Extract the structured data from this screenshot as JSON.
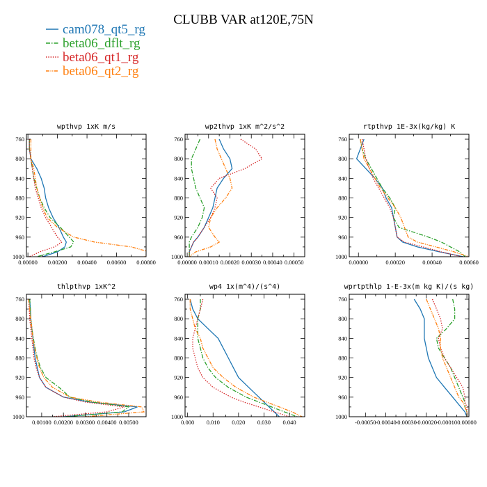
{
  "title": "CLUBB VAR at120E,75N",
  "legend": [
    {
      "name": "cam078_qt5_rg",
      "color": "#1f77b4",
      "dash": "solid"
    },
    {
      "name": "beta06_dflt_rg",
      "color": "#2ca02c",
      "dash": "dashdot"
    },
    {
      "name": "beta06_qt1_rg",
      "color": "#d62728",
      "dash": "dotted"
    },
    {
      "name": "beta06_qt2_rg",
      "color": "#ff7f0e",
      "dash": "dashdotdot"
    }
  ],
  "chart_data": [
    {
      "type": "line",
      "title": "wpthvp  1xK m/s",
      "xlim": [
        -0.0001,
        0.008
      ],
      "ylim": [
        1000,
        750
      ],
      "xticks": [
        0,
        0.002,
        0.004,
        0.006,
        0.008
      ],
      "xtick_labels": [
        "0.00000",
        "0.00200",
        "0.00400",
        "0.00600",
        "0.00800"
      ],
      "yticks": [
        760,
        800,
        840,
        880,
        920,
        960,
        1000
      ],
      "y": [
        760,
        780,
        800,
        820,
        840,
        860,
        880,
        900,
        920,
        940,
        960,
        970,
        980,
        990,
        1000
      ],
      "series": [
        {
          "name": "cam078_qt5_rg",
          "x": [
            0.0001,
            0.0001,
            0.0002,
            0.0006,
            0.0009,
            0.0011,
            0.0012,
            0.0014,
            0.0017,
            0.0021,
            0.0024,
            0.0026,
            0.0025,
            0.002,
            0.001
          ]
        },
        {
          "name": "beta06_dflt_rg",
          "x": [
            0.0001,
            0.0001,
            0.0002,
            0.0003,
            0.0004,
            0.0006,
            0.0008,
            0.0011,
            0.0015,
            0.0022,
            0.0028,
            0.0031,
            0.0029,
            0.0018,
            0.0006
          ]
        },
        {
          "name": "beta06_qt1_rg",
          "x": [
            0.0001,
            0.0001,
            0.0002,
            0.0003,
            0.0004,
            0.0005,
            0.0007,
            0.0009,
            0.0012,
            0.0016,
            0.002,
            0.0023,
            0.0018,
            0.0008,
            0.0001
          ]
        },
        {
          "name": "beta06_qt2_rg",
          "x": [
            0.0002,
            0.0002,
            0.0002,
            0.0004,
            0.0005,
            0.0006,
            0.0008,
            0.001,
            0.0013,
            0.002,
            0.0031,
            0.0045,
            0.007,
            0.0082,
            0.0079
          ]
        }
      ]
    },
    {
      "type": "line",
      "title": "wp2thvp  1xK m^2/s^2",
      "xlim": [
        -1e-05,
        0.00055
      ],
      "ylim": [
        1000,
        750
      ],
      "xticks": [
        0,
        0.0001,
        0.0002,
        0.0003,
        0.0004,
        0.0005
      ],
      "xtick_labels": [
        "0.00000",
        "0.00010",
        "0.00020",
        "0.00030",
        "0.00040",
        "0.00050"
      ],
      "yticks": [
        760,
        800,
        840,
        880,
        920,
        960,
        1000
      ],
      "y": [
        760,
        780,
        800,
        820,
        840,
        860,
        880,
        900,
        920,
        940,
        960,
        970,
        980,
        990,
        1000
      ],
      "series": [
        {
          "name": "cam078_qt5_rg",
          "x": [
            0.00015,
            0.00017,
            0.0002,
            0.00021,
            0.00017,
            0.00014,
            0.00013,
            0.00012,
            0.0001,
            8e-05,
            5e-05,
            3e-05,
            2e-05,
            1e-05,
            1e-05
          ]
        },
        {
          "name": "beta06_dflt_rg",
          "x": [
            6e-05,
            4e-05,
            2e-05,
            2e-05,
            3e-05,
            4e-05,
            6e-05,
            8e-05,
            7e-05,
            5e-05,
            2e-05,
            1e-05,
            1e-05,
            1e-05,
            1e-05
          ]
        },
        {
          "name": "beta06_qt1_rg",
          "x": [
            0.00025,
            0.00032,
            0.00035,
            0.00027,
            0.00015,
            0.00011,
            0.00014,
            0.00013,
            0.00011,
            8e-05,
            5e-05,
            3e-05,
            2e-05,
            1e-05,
            1e-05
          ]
        },
        {
          "name": "beta06_qt2_rg",
          "x": [
            0.00013,
            0.00014,
            0.00016,
            0.00018,
            0.0002,
            0.00021,
            0.00018,
            0.00014,
            0.00011,
            0.0001,
            0.00013,
            0.00015,
            0.00011,
            4e-05,
            1e-05
          ]
        }
      ]
    },
    {
      "type": "line",
      "title": "rtpthvp  1E-3x(kg/kg) K",
      "xlim": [
        -5e-05,
        0.0006
      ],
      "ylim": [
        1000,
        750
      ],
      "xticks": [
        0,
        0.0002,
        0.0004,
        0.0006
      ],
      "xtick_labels": [
        "0.00000",
        "0.00020",
        "0.00040",
        "0.00060"
      ],
      "yticks": [
        760,
        800,
        840,
        880,
        920,
        960,
        1000
      ],
      "y": [
        760,
        780,
        800,
        820,
        840,
        860,
        880,
        900,
        920,
        940,
        960,
        970,
        980,
        990,
        1000
      ],
      "series": [
        {
          "name": "cam078_qt5_rg",
          "x": [
            3e-05,
            1e-05,
            -1e-05,
            4e-05,
            9e-05,
            0.00013,
            0.00015,
            0.00018,
            0.00019,
            0.0002,
            0.00021,
            0.00024,
            0.00032,
            0.00044,
            0.00057
          ]
        },
        {
          "name": "beta06_dflt_rg",
          "x": [
            1e-05,
            2e-05,
            4e-05,
            7e-05,
            0.0001,
            0.00013,
            0.00017,
            0.0002,
            0.00019,
            0.00022,
            0.00038,
            0.00045,
            0.0005,
            0.00055,
            0.00058
          ]
        },
        {
          "name": "beta06_qt1_rg",
          "x": [
            2e-05,
            3e-05,
            4e-05,
            6e-05,
            8e-05,
            0.00011,
            0.00014,
            0.00017,
            0.00019,
            0.0002,
            0.00021,
            0.00025,
            0.00035,
            0.00045,
            0.00056
          ]
        },
        {
          "name": "beta06_qt2_rg",
          "x": [
            1e-05,
            2e-05,
            3e-05,
            6e-05,
            9e-05,
            0.00012,
            0.00016,
            0.0002,
            0.00023,
            0.00025,
            0.00027,
            0.00032,
            0.00042,
            0.00052,
            0.0006
          ]
        }
      ]
    },
    {
      "type": "line",
      "title": "thlpthvp  1xK^2",
      "xlim": [
        0.0003,
        0.0058
      ],
      "ylim": [
        1000,
        750
      ],
      "xticks": [
        0.001,
        0.002,
        0.003,
        0.004,
        0.005
      ],
      "xtick_labels": [
        "0.00100",
        "0.00200",
        "0.00300",
        "0.00400",
        "0.00500"
      ],
      "yticks": [
        760,
        800,
        840,
        880,
        920,
        960,
        1000
      ],
      "y": [
        760,
        780,
        800,
        820,
        840,
        860,
        880,
        900,
        920,
        940,
        960,
        970,
        980,
        990,
        1000
      ],
      "series": [
        {
          "name": "cam078_qt5_rg",
          "x": [
            0.00045,
            0.00048,
            0.0005,
            0.00055,
            0.0006,
            0.00065,
            0.0007,
            0.0008,
            0.0009,
            0.0012,
            0.002,
            0.0032,
            0.0054,
            0.0048,
            0.002
          ]
        },
        {
          "name": "beta06_dflt_rg",
          "x": [
            0.00045,
            0.00048,
            0.0005,
            0.00055,
            0.00062,
            0.0007,
            0.0008,
            0.00095,
            0.0012,
            0.0018,
            0.0023,
            0.0033,
            0.005,
            0.0047,
            0.0021
          ]
        },
        {
          "name": "beta06_qt1_rg",
          "x": [
            0.0004,
            0.00043,
            0.00045,
            0.0005,
            0.00055,
            0.0006,
            0.00065,
            0.00075,
            0.0009,
            0.0012,
            0.002,
            0.003,
            0.0048,
            0.004,
            0.0015
          ]
        },
        {
          "name": "beta06_qt2_rg",
          "x": [
            0.0004,
            0.00045,
            0.0005,
            0.00055,
            0.0006,
            0.00068,
            0.00078,
            0.0009,
            0.0011,
            0.0015,
            0.0023,
            0.0036,
            0.0056,
            0.0057,
            0.003
          ]
        }
      ]
    },
    {
      "type": "line",
      "title": "wp4  1x(m^4)/(s^4)",
      "xlim": [
        -0.001,
        0.046
      ],
      "ylim": [
        1000,
        750
      ],
      "xticks": [
        0,
        0.01,
        0.02,
        0.03,
        0.04
      ],
      "xtick_labels": [
        "0.000",
        "0.010",
        "0.020",
        "0.030",
        "0.040"
      ],
      "yticks": [
        760,
        800,
        840,
        880,
        920,
        960,
        1000
      ],
      "y": [
        760,
        780,
        800,
        820,
        840,
        860,
        880,
        900,
        920,
        940,
        960,
        970,
        980,
        990,
        1000
      ],
      "series": [
        {
          "name": "cam078_qt5_rg",
          "x": [
            0.001,
            0.002,
            0.004,
            0.008,
            0.012,
            0.014,
            0.016,
            0.018,
            0.02,
            0.024,
            0.028,
            0.03,
            0.032,
            0.034,
            0.036
          ]
        },
        {
          "name": "beta06_dflt_rg",
          "x": [
            0.005,
            0.005,
            0.004,
            0.004,
            0.004,
            0.005,
            0.006,
            0.008,
            0.011,
            0.016,
            0.023,
            0.028,
            0.033,
            0.038,
            0.043
          ]
        },
        {
          "name": "beta06_qt1_rg",
          "x": [
            0.006,
            0.005,
            0.004,
            0.003,
            0.002,
            0.002,
            0.003,
            0.004,
            0.006,
            0.01,
            0.017,
            0.022,
            0.028,
            0.034,
            0.04
          ]
        },
        {
          "name": "beta06_qt2_rg",
          "x": [
            0.001,
            0.001,
            0.002,
            0.003,
            0.005,
            0.006,
            0.008,
            0.01,
            0.014,
            0.019,
            0.026,
            0.031,
            0.036,
            0.041,
            0.045
          ]
        }
      ]
    },
    {
      "type": "line",
      "title": "wprtpthlp  1-E-3x(m kg K)/(s kg)",
      "xlim": [
        -0.00058,
        1e-05
      ],
      "ylim": [
        1000,
        750
      ],
      "xticks": [
        -0.0005,
        -0.0004,
        -0.0003,
        -0.0002,
        -0.0001,
        0
      ],
      "xtick_labels": [
        "-0.00050",
        "-0.00040",
        "-0.00030",
        "-0.00020",
        "-0.00010",
        "0.00000"
      ],
      "yticks": [
        760,
        800,
        840,
        880,
        920,
        960,
        1000
      ],
      "y": [
        760,
        780,
        800,
        820,
        840,
        860,
        880,
        900,
        920,
        940,
        960,
        970,
        980,
        990,
        1000
      ],
      "series": [
        {
          "name": "cam078_qt5_rg",
          "x": [
            -0.00026,
            -0.00023,
            -0.00021,
            -0.00021,
            -0.00021,
            -0.0002,
            -0.00019,
            -0.00017,
            -0.00015,
            -0.00011,
            -7e-05,
            -5e-05,
            -3e-05,
            -1e-05,
            0.0
          ]
        },
        {
          "name": "beta06_dflt_rg",
          "x": [
            -7e-05,
            -6e-05,
            -6e-05,
            -0.0001,
            -0.00015,
            -0.00014,
            -0.00011,
            -8e-05,
            -6e-05,
            -4e-05,
            -2e-05,
            -1e-05,
            -1e-05,
            0.0,
            0.0
          ]
        },
        {
          "name": "beta06_qt1_rg",
          "x": [
            -0.00017,
            -0.00015,
            -0.00013,
            -0.00012,
            -0.00014,
            -0.00013,
            -0.00011,
            -8e-05,
            -5e-05,
            -2e-05,
            -1e-05,
            -1e-05,
            0.0,
            0.0,
            0.0
          ]
        },
        {
          "name": "beta06_qt2_rg",
          "x": [
            -0.0002,
            -0.00018,
            -0.00016,
            -0.00014,
            -0.00013,
            -0.00013,
            -0.00012,
            -0.0001,
            -8e-05,
            -6e-05,
            -4e-05,
            -2e-05,
            -1e-05,
            0.0,
            0.0
          ]
        }
      ]
    }
  ]
}
